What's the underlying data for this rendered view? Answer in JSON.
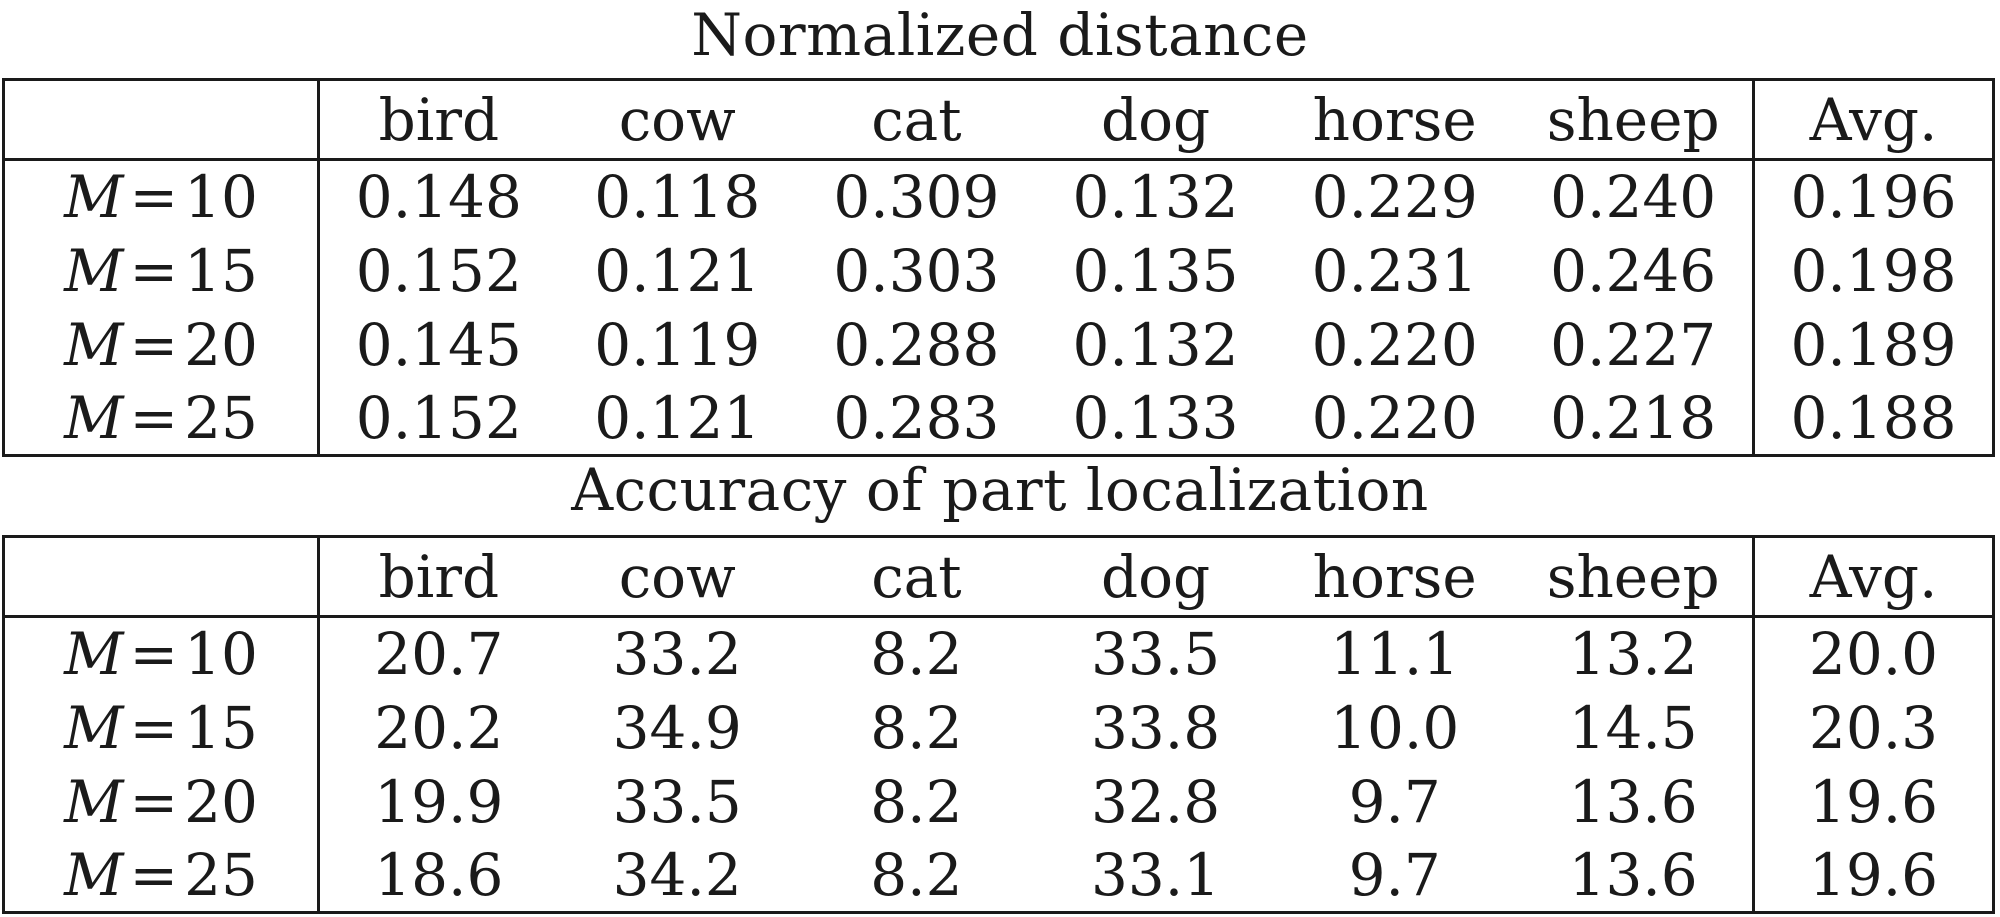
{
  "tables": [
    {
      "title": "Normalized distance",
      "columns": [
        "bird",
        "cow",
        "cat",
        "dog",
        "horse",
        "sheep",
        "Avg."
      ],
      "rows": [
        {
          "m_var": "M",
          "m_eq": "=",
          "m_value": "10",
          "values": [
            "0.148",
            "0.118",
            "0.309",
            "0.132",
            "0.229",
            "0.240",
            "0.196"
          ]
        },
        {
          "m_var": "M",
          "m_eq": "=",
          "m_value": "15",
          "values": [
            "0.152",
            "0.121",
            "0.303",
            "0.135",
            "0.231",
            "0.246",
            "0.198"
          ]
        },
        {
          "m_var": "M",
          "m_eq": "=",
          "m_value": "20",
          "values": [
            "0.145",
            "0.119",
            "0.288",
            "0.132",
            "0.220",
            "0.227",
            "0.189"
          ]
        },
        {
          "m_var": "M",
          "m_eq": "=",
          "m_value": "25",
          "values": [
            "0.152",
            "0.121",
            "0.283",
            "0.133",
            "0.220",
            "0.218",
            "0.188"
          ]
        }
      ],
      "best_row": 3
    },
    {
      "title": "Accuracy of part localization",
      "columns": [
        "bird",
        "cow",
        "cat",
        "dog",
        "horse",
        "sheep",
        "Avg."
      ],
      "rows": [
        {
          "m_var": "M",
          "m_eq": "=",
          "m_value": "10",
          "values": [
            "20.7",
            "33.2",
            "8.2",
            "33.5",
            "11.1",
            "13.2",
            "20.0"
          ]
        },
        {
          "m_var": "M",
          "m_eq": "=",
          "m_value": "15",
          "values": [
            "20.2",
            "34.9",
            "8.2",
            "33.8",
            "10.0",
            "14.5",
            "20.3"
          ]
        },
        {
          "m_var": "M",
          "m_eq": "=",
          "m_value": "20",
          "values": [
            "19.9",
            "33.5",
            "8.2",
            "32.8",
            "9.7",
            "13.6",
            "19.6"
          ]
        },
        {
          "m_var": "M",
          "m_eq": "=",
          "m_value": "25",
          "values": [
            "18.6",
            "34.2",
            "8.2",
            "33.1",
            "9.7",
            "13.6",
            "19.6"
          ]
        }
      ],
      "best_row": 1
    }
  ]
}
